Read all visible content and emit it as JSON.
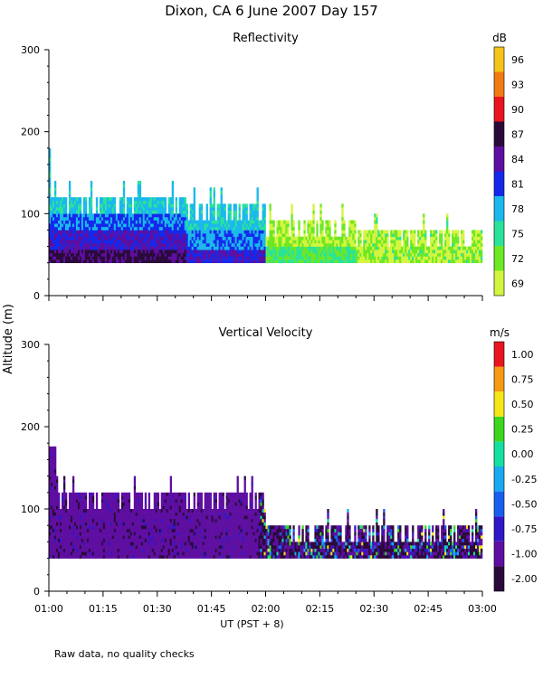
{
  "figure": {
    "title": "Dixon, CA  6 June 2007  Day 157",
    "ylabel": "Altitude (m)",
    "footnote": "Raw data, no quality checks"
  },
  "chart_data": [
    {
      "type": "heatmap",
      "title": "Reflectivity",
      "xlabel": "UT  (PST + 8)",
      "ylabel": "Altitude (m)",
      "xlim_minutes": [
        0,
        120
      ],
      "ylim": [
        0,
        300
      ],
      "x_tick_labels": [
        "01:00",
        "01:15",
        "01:30",
        "01:45",
        "02:00",
        "02:15",
        "02:30",
        "02:45",
        "03:00"
      ],
      "y_ticks": [
        0,
        100,
        200,
        300
      ],
      "colorbar": {
        "unit": "dB",
        "levels": [
          "69",
          "72",
          "75",
          "78",
          "81",
          "84",
          "87",
          "90",
          "93",
          "96"
        ],
        "colors": [
          "#d4f540",
          "#6de824",
          "#2ae39a",
          "#1ab8ec",
          "#1428ec",
          "#5e0ea0",
          "#2a0a3a",
          "#e8141e",
          "#f27a12",
          "#f5c418"
        ]
      },
      "segments": [
        {
          "t_start": 0,
          "t_end": 38,
          "base_m": 40,
          "top_m": 120,
          "dominant_dB": "78-84"
        },
        {
          "t_start": 38,
          "t_end": 60,
          "base_m": 40,
          "top_m": 110,
          "dominant_dB": "75-81"
        },
        {
          "t_start": 60,
          "t_end": 85,
          "base_m": 40,
          "top_m": 90,
          "dominant_dB": "72-75"
        },
        {
          "t_start": 85,
          "t_end": 120,
          "base_m": 40,
          "top_m": 80,
          "dominant_dB": "69-72"
        }
      ]
    },
    {
      "type": "heatmap",
      "title": "Vertical Velocity",
      "xlabel": "UT  (PST + 8)",
      "ylabel": "Altitude (m)",
      "xlim_minutes": [
        0,
        120
      ],
      "ylim": [
        0,
        300
      ],
      "x_tick_labels": [
        "01:00",
        "01:15",
        "01:30",
        "01:45",
        "02:00",
        "02:15",
        "02:30",
        "02:45",
        "03:00"
      ],
      "y_ticks": [
        0,
        100,
        200,
        300
      ],
      "colorbar": {
        "unit": "m/s",
        "levels": [
          "-2.00",
          "-1.00",
          "-0.75",
          "-0.50",
          "-0.25",
          "0.00",
          "0.25",
          "0.50",
          "0.75",
          "1.00"
        ],
        "colors": [
          "#2a0a3a",
          "#5e0ea0",
          "#3018c8",
          "#1a5ef0",
          "#18aaf0",
          "#14e0a0",
          "#3cd61e",
          "#f5e61a",
          "#f59a12",
          "#e8141e"
        ]
      },
      "segments": [
        {
          "t_start": 0,
          "t_end": 60,
          "base_m": 40,
          "top_m": 120,
          "dominant_ms": "-1.00"
        },
        {
          "t_start": 60,
          "t_end": 120,
          "base_m": 40,
          "top_m": 80,
          "dominant_ms": "-2.00 to 0.25"
        }
      ]
    }
  ]
}
